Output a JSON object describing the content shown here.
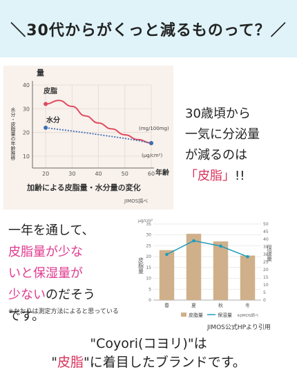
{
  "header": {
    "title": "＼30代からがくっと減るものって？／"
  },
  "chart1": {
    "ylabel_top": "量",
    "ylabel_side": "水分・皮脂量の年齢推移",
    "xlabel": "年齢",
    "title": "加齢による皮脂量・水分量の変化",
    "source": "JIMOS調べ",
    "series_labels": {
      "sebum": "皮脂",
      "water": "水分"
    },
    "unit_labels": {
      "water": "(mg/100mg)",
      "sebum": "(μg/cm²)"
    }
  },
  "note1": {
    "line1": "30歳頃から",
    "line2": "一気に分泌量",
    "line3": "が減るのは",
    "line4_red": "「皮脂」",
    "line4_rest": "!!"
  },
  "note2": {
    "line1": "一年を通して、",
    "line2": "皮脂量が少な",
    "line3": "いと保湿量が",
    "line4_pink": "少ない",
    "line4_rest": "のだそう",
    "line5": "です。",
    "small": "※かおりは測定方法によると思っている"
  },
  "chart2": {
    "left_unit": "μg/cm²",
    "left_axis_label": "皮脂量",
    "right_axis_label": "保湿量",
    "legend_bar": "皮脂量",
    "legend_line": "保湿量",
    "legend_source": "※JIMOS調べ"
  },
  "credit": "JIMOS公式HPより引用",
  "final": {
    "line1": "\"Coyori(コヨリ)\"は",
    "line2_q1": "\"",
    "line2_red": "皮脂",
    "line2_rest": "\"に着目したブランドです。"
  },
  "colors": {
    "sebum": "#e04a5f",
    "water": "#3a6fb5",
    "bar": "#cfb08a",
    "line": "#1f9bbd",
    "accent_red": "#d8335b",
    "accent_pink": "#e03a8f",
    "header_bg": "#dff3f8"
  },
  "chart_data": [
    {
      "type": "line",
      "title": "加齢による皮脂量・水分量の変化",
      "xlabel": "年齢",
      "ylabel": "量",
      "x": [
        20,
        25,
        30,
        35,
        40,
        45,
        50,
        55,
        60
      ],
      "ylim": [
        5,
        40
      ],
      "xlim": [
        15,
        60
      ],
      "yticks": [
        10,
        20,
        30,
        40
      ],
      "xticks": [
        20,
        30,
        40,
        50,
        60
      ],
      "series": [
        {
          "name": "皮脂",
          "values": [
            32,
            33.5,
            31,
            27,
            24,
            21.5,
            19,
            17,
            15.5
          ]
        },
        {
          "name": "水分",
          "values": [
            22,
            21.3,
            20.6,
            19.9,
            19.1,
            18.3,
            17.5,
            16.6,
            15.5
          ]
        }
      ]
    },
    {
      "type": "bar",
      "categories": [
        "春",
        "夏",
        "秋",
        "冬"
      ],
      "left_ylim": [
        0,
        35
      ],
      "right_ylim": [
        0,
        50
      ],
      "left_yticks": [
        0,
        5,
        10,
        15,
        20,
        25,
        30,
        35
      ],
      "right_yticks": [
        0,
        5,
        10,
        15,
        20,
        25,
        30,
        35,
        40,
        45,
        50
      ],
      "series": [
        {
          "name": "皮脂量",
          "kind": "bar",
          "axis": "left",
          "values": [
            23,
            30.5,
            27,
            20.5
          ]
        },
        {
          "name": "保湿量",
          "kind": "line",
          "axis": "right",
          "values": [
            30,
            39,
            35.5,
            28.5
          ]
        }
      ]
    }
  ]
}
